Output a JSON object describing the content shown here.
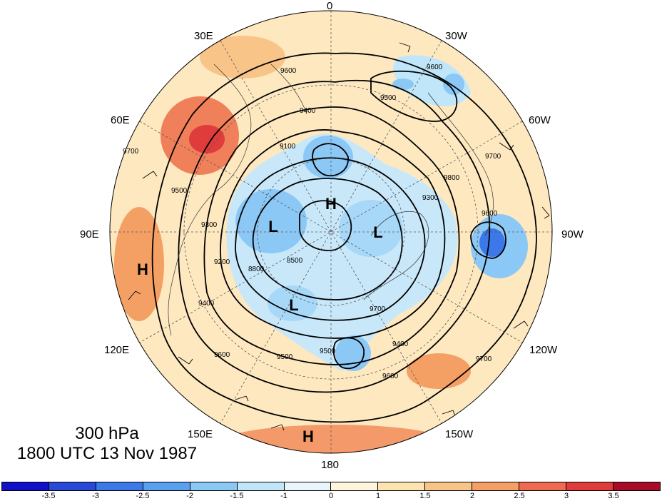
{
  "map": {
    "level_label": "300 hPa",
    "time_label": "1800 UTC 13 Nov 1987",
    "longitude_labels": [
      "0",
      "30W",
      "60W",
      "90W",
      "120W",
      "150W",
      "180",
      "150E",
      "120E",
      "90E",
      "60E",
      "30E"
    ],
    "contour_levels": [
      8500,
      8800,
      9100,
      9400,
      9500,
      9600,
      9700
    ],
    "contour_labels": [
      "9600",
      "9500",
      "9400",
      "9100",
      "9700",
      "9500",
      "9300",
      "9600",
      "9700",
      "8500",
      "8800",
      "9300",
      "9200",
      "9400",
      "9600",
      "9500",
      "9700",
      "9800",
      "9400",
      "9600",
      "9700",
      "9600",
      "9500"
    ],
    "pressure_centers": [
      {
        "type": "H",
        "label": "H"
      },
      {
        "type": "L",
        "label": "L"
      },
      {
        "type": "L",
        "label": "L"
      },
      {
        "type": "L",
        "label": "L"
      },
      {
        "type": "H",
        "label": "H"
      },
      {
        "type": "H",
        "label": "H"
      }
    ]
  },
  "colorbar": {
    "ticks": [
      "-3.5",
      "-3",
      "-2.5",
      "-2",
      "-1.5",
      "-1",
      "0",
      "1",
      "1.5",
      "2",
      "2.5",
      "3",
      "3.5"
    ],
    "colors": [
      "#1010c8",
      "#2848d8",
      "#3c78e8",
      "#5aa0f0",
      "#8cc8f5",
      "#c0e6fa",
      "#e8f6fc",
      "#fdf6dc",
      "#fde3b0",
      "#f8c488",
      "#f4a064",
      "#ee6a50",
      "#e03c3c",
      "#a80a28"
    ]
  }
}
